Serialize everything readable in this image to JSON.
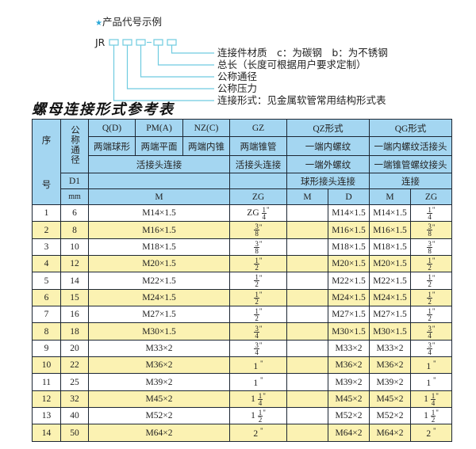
{
  "diagram": {
    "heading": "产品代号示例",
    "star_color": "#2aa8d8",
    "code_prefix": "JR",
    "dash": "-",
    "line_color": "#6fcbe0",
    "labels": [
      "连接件材质　c：为碳钢　b：为不锈钢",
      "总长（长度可根据用户要求定制）",
      "公称通径",
      "公称压力",
      "连接形式：见金属软管常用结构形式表"
    ]
  },
  "title": "螺母连接形式参考表",
  "table": {
    "header": {
      "seq_top": "序",
      "seq_bottom": "号",
      "dn": "公称通径",
      "qd": "Q(D)",
      "pm": "PM(A)",
      "nz": "NZ(C)",
      "gz": "GZ",
      "qz": "QZ形式",
      "qg": "QG形式",
      "qd2": "两端球形",
      "pm2": "两端平面",
      "nz2": "两端内锥",
      "gz2": "两端锥管",
      "qz2": "一端内螺纹",
      "qg2": "一端内螺纹活接头",
      "union1": "活接头连接",
      "union2": "活接头连接",
      "qz3": "一端外螺纹",
      "qg3": "一端锥管螺纹接头",
      "d1": "D1",
      "qz4": "球形接头连接",
      "qg4": "连接",
      "mm": "mm",
      "m": "M",
      "zg": "ZG",
      "qz_m": "M",
      "qz_d": "D",
      "qg_m": "M",
      "qg_zg": "ZG"
    },
    "colors": {
      "header": "#a4d6f1",
      "alt_row": "#fbf2b2"
    },
    "rows": [
      {
        "no": "1",
        "dn": "6",
        "m": "M14×1.5",
        "zg": {
          "pre": "ZG",
          "num": "1",
          "den": "4",
          "q": "\""
        },
        "qz_m": "",
        "qz_d": "M14×1.5",
        "qg_m": "M14×1.5",
        "qg_zg": {
          "pre": "",
          "num": "1",
          "den": "4",
          "q": "\""
        }
      },
      {
        "no": "2",
        "dn": "8",
        "m": "M16×1.5",
        "zg": {
          "pre": "",
          "num": "3",
          "den": "8",
          "q": "\""
        },
        "qz_m": "",
        "qz_d": "M16×1.5",
        "qg_m": "M16×1.5",
        "qg_zg": {
          "pre": "",
          "num": "3",
          "den": "8",
          "q": "\""
        }
      },
      {
        "no": "3",
        "dn": "10",
        "m": "M18×1.5",
        "zg": {
          "pre": "",
          "num": "3",
          "den": "8",
          "q": "\""
        },
        "qz_m": "",
        "qz_d": "M18×1.5",
        "qg_m": "M18×1.5",
        "qg_zg": {
          "pre": "",
          "num": "3",
          "den": "8",
          "q": "\""
        }
      },
      {
        "no": "4",
        "dn": "12",
        "m": "M20×1.5",
        "zg": {
          "pre": "",
          "num": "1",
          "den": "2",
          "q": "\""
        },
        "qz_m": "",
        "qz_d": "M20×1.5",
        "qg_m": "M20×1.5",
        "qg_zg": {
          "pre": "",
          "num": "1",
          "den": "2",
          "q": "\""
        }
      },
      {
        "no": "5",
        "dn": "14",
        "m": "M22×1.5",
        "zg": {
          "pre": "",
          "num": "1",
          "den": "2",
          "q": "\""
        },
        "qz_m": "",
        "qz_d": "M22×1.5",
        "qg_m": "M22×1.5",
        "qg_zg": {
          "pre": "",
          "num": "1",
          "den": "2",
          "q": "\""
        }
      },
      {
        "no": "6",
        "dn": "15",
        "m": "M24×1.5",
        "zg": {
          "pre": "",
          "num": "1",
          "den": "2",
          "q": "\""
        },
        "qz_m": "",
        "qz_d": "M24×1.5",
        "qg_m": "M24×1.5",
        "qg_zg": {
          "pre": "",
          "num": "1",
          "den": "2",
          "q": "\""
        }
      },
      {
        "no": "7",
        "dn": "16",
        "m": "M27×1.5",
        "zg": {
          "pre": "",
          "num": "1",
          "den": "2",
          "q": "\""
        },
        "qz_m": "",
        "qz_d": "M27×1.5",
        "qg_m": "M27×1.5",
        "qg_zg": {
          "pre": "",
          "num": "1",
          "den": "2",
          "q": "\""
        }
      },
      {
        "no": "8",
        "dn": "18",
        "m": "M30×1.5",
        "zg": {
          "pre": "",
          "num": "3",
          "den": "4",
          "q": "\""
        },
        "qz_m": "",
        "qz_d": "M30×1.5",
        "qg_m": "M30×1.5",
        "qg_zg": {
          "pre": "",
          "num": "3",
          "den": "4",
          "q": "\""
        }
      },
      {
        "no": "9",
        "dn": "20",
        "m": "M33×2",
        "zg": {
          "pre": "",
          "num": "3",
          "den": "4",
          "q": "\""
        },
        "qz_m": "",
        "qz_d": "M33×2",
        "qg_m": "M33×2",
        "qg_zg": {
          "pre": "",
          "num": "3",
          "den": "4",
          "q": "\""
        }
      },
      {
        "no": "10",
        "dn": "22",
        "m": "M36×2",
        "zg": {
          "pre": "1",
          "num": null,
          "den": null,
          "q": "\""
        },
        "qz_m": "",
        "qz_d": "M36×2",
        "qg_m": "M36×2",
        "qg_zg": {
          "pre": "1",
          "num": null,
          "den": null,
          "q": "\""
        }
      },
      {
        "no": "11",
        "dn": "25",
        "m": "M39×2",
        "zg": {
          "pre": "1",
          "num": null,
          "den": null,
          "q": "\""
        },
        "qz_m": "",
        "qz_d": "M39×2",
        "qg_m": "M39×2",
        "qg_zg": {
          "pre": "1",
          "num": null,
          "den": null,
          "q": "\""
        }
      },
      {
        "no": "12",
        "dn": "32",
        "m": "M45×2",
        "zg": {
          "pre": "1",
          "num": "1",
          "den": "4",
          "q": "\""
        },
        "qz_m": "",
        "qz_d": "M45×2",
        "qg_m": "M45×2",
        "qg_zg": {
          "pre": "1",
          "num": "1",
          "den": "4",
          "q": "\""
        }
      },
      {
        "no": "13",
        "dn": "40",
        "m": "M52×2",
        "zg": {
          "pre": "1",
          "num": "1",
          "den": "2",
          "q": "\""
        },
        "qz_m": "",
        "qz_d": "M52×2",
        "qg_m": "M52×2",
        "qg_zg": {
          "pre": "1",
          "num": "1",
          "den": "2",
          "q": "\""
        }
      },
      {
        "no": "14",
        "dn": "50",
        "m": "M64×2",
        "zg": {
          "pre": "2",
          "num": null,
          "den": null,
          "q": "\""
        },
        "qz_m": "",
        "qz_d": "M64×2",
        "qg_m": "M64×2",
        "qg_zg": {
          "pre": "2",
          "num": null,
          "den": null,
          "q": "\""
        }
      }
    ]
  }
}
